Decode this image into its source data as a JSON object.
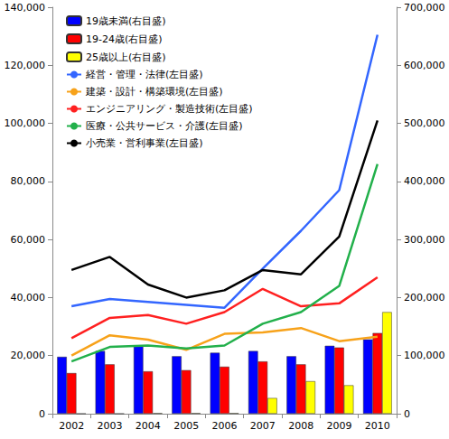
{
  "chart_data": {
    "type": "bar",
    "categories": [
      "2002",
      "2003",
      "2004",
      "2005",
      "2006",
      "2007",
      "2008",
      "2009",
      "2010"
    ],
    "series": [
      {
        "name": "19歳未満(右目盛)",
        "type": "bar",
        "axis": "y2",
        "color": "#0000ff",
        "values": [
          98000,
          108000,
          117000,
          99000,
          105000,
          108000,
          99000,
          117000,
          128000
        ]
      },
      {
        "name": "19-24歳(右目盛)",
        "type": "bar",
        "axis": "y2",
        "color": "#ff0000",
        "values": [
          70000,
          85000,
          73000,
          75000,
          81000,
          90000,
          85000,
          114000,
          139000
        ]
      },
      {
        "name": "25歳以上(右目盛)",
        "type": "bar",
        "axis": "y2",
        "color": "#ffff00",
        "values": [
          0,
          0,
          1000,
          1000,
          1000,
          27000,
          56000,
          49000,
          175000
        ]
      },
      {
        "name": "経営・管理・法律(左目盛)",
        "type": "line",
        "color": "#3366ff",
        "values": [
          37000,
          39500,
          38500,
          37500,
          36500,
          50000,
          63000,
          77000,
          130500
        ]
      },
      {
        "name": "建築・設計・構築環境(左目盛)",
        "type": "line",
        "color": "#f7a21a",
        "values": [
          20000,
          27000,
          25500,
          22000,
          27500,
          28000,
          29500,
          25000,
          26500
        ]
      },
      {
        "name": "エンジニアリング・製造技術(左目盛)",
        "type": "line",
        "color": "#ff2020",
        "values": [
          26000,
          33000,
          34000,
          31000,
          35000,
          43000,
          37000,
          38000,
          47000
        ]
      },
      {
        "name": "医療・公共サービス・介護(左目盛)",
        "type": "line",
        "color": "#22b04b",
        "values": [
          18000,
          23000,
          23500,
          22500,
          23500,
          31000,
          35000,
          44000,
          86000
        ]
      },
      {
        "name": "小売業・営利事業(左目盛)",
        "type": "line",
        "color": "#000000",
        "values": [
          49500,
          54000,
          44500,
          40000,
          42500,
          49500,
          48000,
          61000,
          101000
        ]
      }
    ],
    "ylim": [
      0,
      140000
    ],
    "yticks": [
      0,
      {
        "value": 20000,
        "label": "20,000"
      },
      {
        "value": 40000,
        "label": "40,000"
      },
      {
        "value": 60000,
        "label": "60,000"
      },
      {
        "value": 80000,
        "label": "80,000"
      },
      {
        "value": 100000,
        "label": "100,000"
      },
      {
        "value": 120000,
        "label": "120,000"
      },
      {
        "value": 140000,
        "label": "140,000"
      }
    ],
    "y2lim": [
      0,
      700000
    ],
    "y2ticks": [
      0,
      {
        "value": 100000,
        "label": "100,000"
      },
      {
        "value": 200000,
        "label": "200,000"
      },
      {
        "value": 300000,
        "label": "300,000"
      },
      {
        "value": 400000,
        "label": "400,000"
      },
      {
        "value": 500000,
        "label": "500,000"
      },
      {
        "value": 600000,
        "label": "600,000"
      },
      {
        "value": 700000,
        "label": "700,000"
      }
    ],
    "grid": false,
    "legend": "top-left"
  }
}
